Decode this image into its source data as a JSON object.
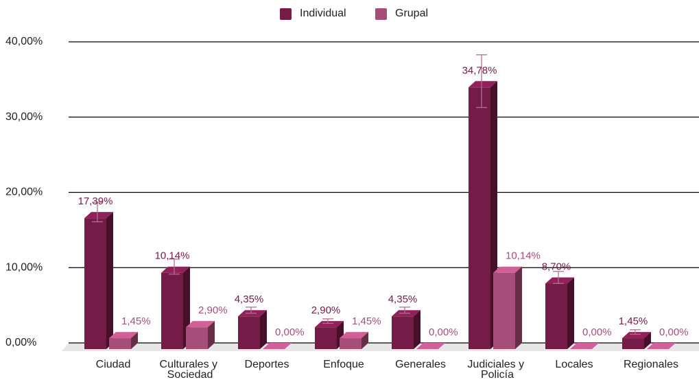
{
  "chart_data": {
    "type": "bar3d",
    "categories": [
      "Ciudad",
      "Culturales y Sociedad",
      "Deportes",
      "Enfoque",
      "Generales",
      "Judiciales y Policía",
      "Locales",
      "Regionales"
    ],
    "series": [
      {
        "name": "Individual",
        "color": "#741b47",
        "values": [
          17.39,
          10.14,
          4.35,
          2.9,
          4.35,
          34.78,
          8.7,
          1.45
        ],
        "value_labels": [
          "17,39%",
          "10,14%",
          "4,35%",
          "2,90%",
          "4,35%",
          "34,78%",
          "8,70%",
          "1,45%"
        ],
        "errors": [
          1.3,
          1.0,
          0.4,
          0.3,
          0.4,
          3.5,
          0.8,
          0.3
        ]
      },
      {
        "name": "Grupal",
        "color": "#a64d79",
        "values": [
          1.45,
          2.9,
          0,
          1.45,
          0,
          10.14,
          0,
          0
        ],
        "value_labels": [
          "1,45%",
          "2,90%",
          "0,00%",
          "1,45%",
          "0,00%",
          "10,14%",
          "0,00%",
          "0,00%"
        ]
      }
    ],
    "ylim": [
      0,
      40
    ],
    "yticks": [
      {
        "value": 0,
        "label": "0,00%"
      },
      {
        "value": 10,
        "label": "10,00%"
      },
      {
        "value": 20,
        "label": "20,00%"
      },
      {
        "value": 30,
        "label": "30,00%"
      },
      {
        "value": 40,
        "label": "40,00%"
      }
    ],
    "grid": true,
    "legend": "top"
  }
}
